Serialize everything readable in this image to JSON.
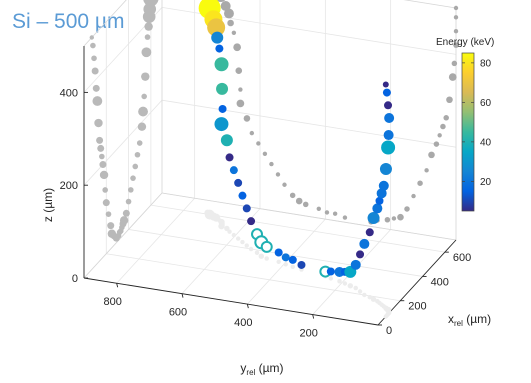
{
  "chart_data": {
    "type": "scatter",
    "subtype": "3d-bubble",
    "title": "Si – 500 µm",
    "axes": {
      "x": {
        "label": "x",
        "label_sub": "rel",
        "label_unit": " (µm)",
        "range": [
          0,
          700
        ],
        "ticks": [
          0,
          200,
          400,
          600
        ]
      },
      "y": {
        "label": "y",
        "label_sub": "rel",
        "label_unit": " (µm)",
        "range": [
          0,
          900
        ],
        "ticks": [
          200,
          400,
          600,
          800
        ]
      },
      "z": {
        "label": "z (µm)",
        "range": [
          0,
          500
        ],
        "ticks": [
          0,
          200,
          400
        ]
      }
    },
    "colorbar": {
      "label": "Energy (keV)",
      "range": [
        5,
        85
      ],
      "ticks": [
        20,
        40,
        60,
        80
      ],
      "colormap": [
        "#352a87",
        "#0363e1",
        "#1485d4",
        "#06a7c6",
        "#38b99e",
        "#92bf73",
        "#d9ba56",
        "#fcce2e",
        "#f9fb0e"
      ]
    },
    "grid": true,
    "view": "3d-perspective",
    "tracks": [
      {
        "name": "",
        "points": [
          {
            "x": 610,
            "y": 730,
            "z": 480,
            "energy": 35,
            "r": 7
          },
          {
            "x": 600,
            "y": 720,
            "z": 445,
            "energy": 85,
            "r": 11
          },
          {
            "x": 590,
            "y": 705,
            "z": 425,
            "energy": 80,
            "r": 9
          },
          {
            "x": 585,
            "y": 695,
            "z": 410,
            "energy": 70,
            "r": 9
          },
          {
            "x": 580,
            "y": 690,
            "z": 390,
            "energy": 25,
            "r": 6
          },
          {
            "x": 570,
            "y": 680,
            "z": 370,
            "energy": 15,
            "r": 4
          },
          {
            "x": 560,
            "y": 670,
            "z": 340,
            "energy": 45,
            "r": 7
          },
          {
            "x": 550,
            "y": 665,
            "z": 290,
            "energy": 45,
            "r": 6
          },
          {
            "x": 540,
            "y": 660,
            "z": 250,
            "energy": 15,
            "r": 4
          },
          {
            "x": 530,
            "y": 660,
            "z": 220,
            "energy": 30,
            "r": 7
          },
          {
            "x": 520,
            "y": 640,
            "z": 190,
            "energy": 40,
            "r": 6
          },
          {
            "x": 500,
            "y": 625,
            "z": 160,
            "energy": 5,
            "r": 4
          },
          {
            "x": 480,
            "y": 605,
            "z": 140,
            "energy": 20,
            "r": 4
          },
          {
            "x": 460,
            "y": 585,
            "z": 120,
            "energy": 10,
            "r": 4
          },
          {
            "x": 440,
            "y": 565,
            "z": 100,
            "energy": 15,
            "r": 4
          },
          {
            "x": 420,
            "y": 545,
            "z": 80,
            "energy": 10,
            "r": 4
          },
          {
            "x": 400,
            "y": 525,
            "z": 60,
            "energy": 5,
            "r": 4
          },
          {
            "x": 380,
            "y": 500,
            "z": 40,
            "energy": 40,
            "r": 5,
            "hollow": true
          },
          {
            "x": 360,
            "y": 480,
            "z": 30,
            "energy": 40,
            "r": 6,
            "hollow": true
          },
          {
            "x": 350,
            "y": 460,
            "z": 25,
            "energy": 40,
            "r": 5,
            "hollow": true
          },
          {
            "x": 340,
            "y": 420,
            "z": 20,
            "energy": 15,
            "r": 4
          },
          {
            "x": 330,
            "y": 395,
            "z": 15,
            "energy": 20,
            "r": 4
          },
          {
            "x": 320,
            "y": 370,
            "z": 15,
            "energy": 15,
            "r": 4
          },
          {
            "x": 310,
            "y": 340,
            "z": 10,
            "energy": 10,
            "r": 4
          },
          {
            "x": 290,
            "y": 260,
            "z": 10,
            "energy": 40,
            "r": 5,
            "hollow": true
          },
          {
            "x": 280,
            "y": 240,
            "z": 15,
            "energy": 15,
            "r": 4
          },
          {
            "x": 270,
            "y": 210,
            "z": 20,
            "energy": 20,
            "r": 5
          },
          {
            "x": 260,
            "y": 190,
            "z": 25,
            "energy": 15,
            "r": 4
          },
          {
            "x": 250,
            "y": 170,
            "z": 30,
            "energy": 35,
            "r": 6
          },
          {
            "x": 240,
            "y": 150,
            "z": 50,
            "energy": 20,
            "r": 5
          },
          {
            "x": 220,
            "y": 130,
            "z": 80,
            "energy": 5,
            "r": 4
          },
          {
            "x": 200,
            "y": 110,
            "z": 110,
            "energy": 20,
            "r": 5
          },
          {
            "x": 190,
            "y": 90,
            "z": 140,
            "energy": 5,
            "r": 4
          },
          {
            "x": 180,
            "y": 75,
            "z": 175,
            "energy": 25,
            "r": 6
          },
          {
            "x": 170,
            "y": 60,
            "z": 200,
            "energy": 20,
            "r": 5
          },
          {
            "x": 160,
            "y": 50,
            "z": 220,
            "energy": 15,
            "r": 4
          },
          {
            "x": 150,
            "y": 40,
            "z": 240,
            "energy": 20,
            "r": 5
          },
          {
            "x": 140,
            "y": 30,
            "z": 260,
            "energy": 20,
            "r": 5
          },
          {
            "x": 130,
            "y": 20,
            "z": 300,
            "energy": 25,
            "r": 6
          },
          {
            "x": 120,
            "y": 10,
            "z": 350,
            "energy": 35,
            "r": 7
          },
          {
            "x": 110,
            "y": 5,
            "z": 380,
            "energy": 20,
            "r": 5
          },
          {
            "x": 100,
            "y": 0,
            "z": 420,
            "energy": 20,
            "r": 5
          },
          {
            "x": 90,
            "y": 0,
            "z": 450,
            "energy": 5,
            "r": 4
          },
          {
            "x": 80,
            "y": 0,
            "z": 480,
            "energy": 15,
            "r": 4
          },
          {
            "x": 70,
            "y": 0,
            "z": 500,
            "energy": 5,
            "r": 3
          }
        ]
      }
    ]
  }
}
